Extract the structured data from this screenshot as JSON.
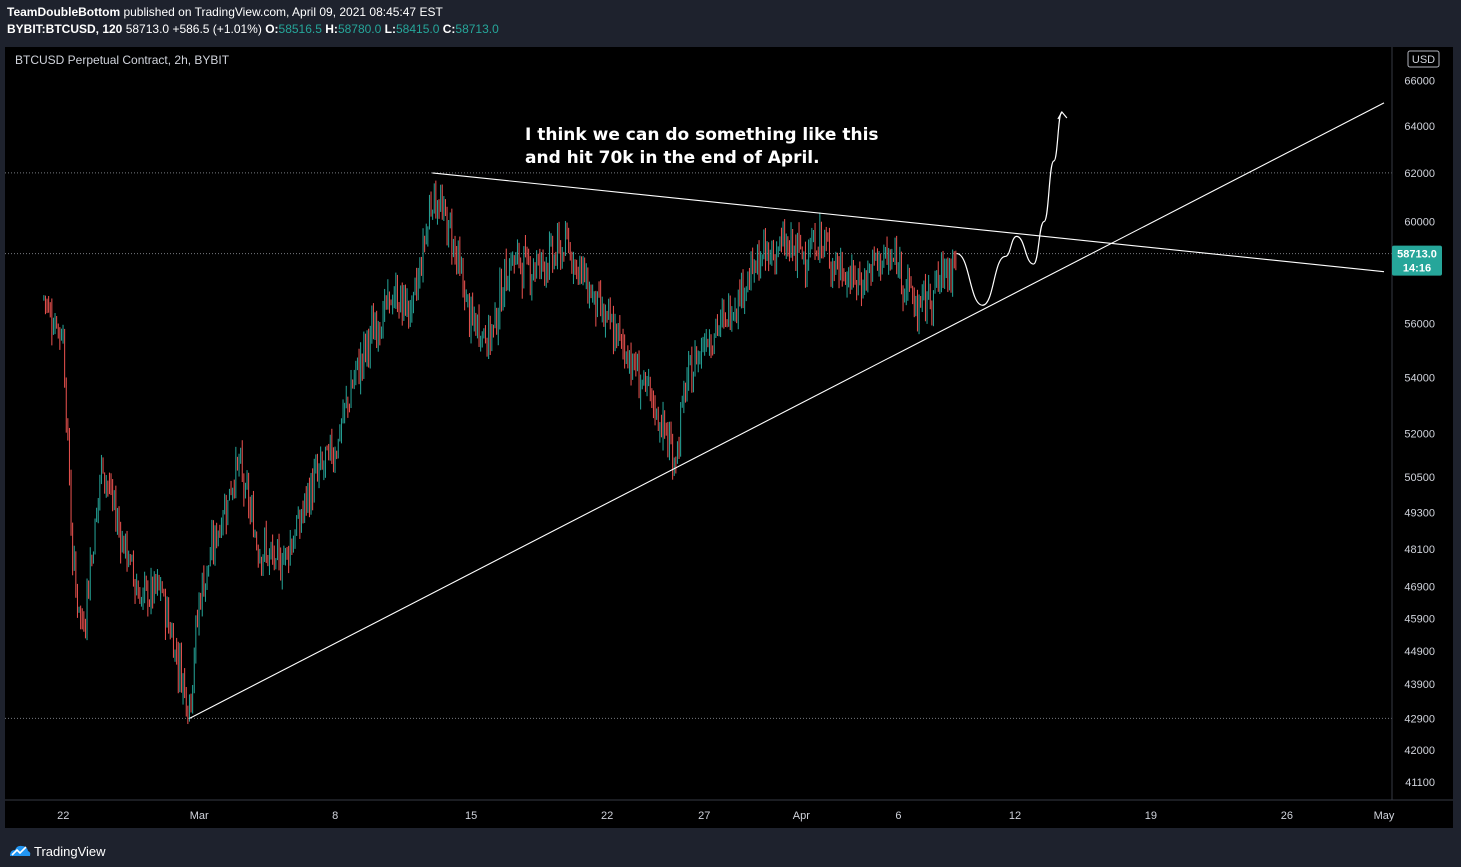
{
  "header": {
    "author": "TeamDoubleBottom",
    "published_text": "published on TradingView.com, April 09, 2021 08:45:47 EST",
    "symbol": "BYBIT:BTCUSD, 120",
    "last_price": "58713.0",
    "change": "+586.5 (+1.01%)",
    "open_key": "O:",
    "open_val": "58516.5",
    "high_key": "H:",
    "high_val": "58780.0",
    "low_key": "L:",
    "low_val": "58415.0",
    "close_key": "C:",
    "close_val": "58713.0"
  },
  "colors": {
    "up": "#26a69a",
    "down": "#ef5350",
    "background": "#000000",
    "chrome": "#1e222d",
    "drawing": "#ffffff",
    "price_badge": "#26a69a"
  },
  "chart_data": {
    "type": "candlestick",
    "title": "BTCUSD Perpetual Contract, 2h, BYBIT",
    "currency": "USD",
    "y_scale": "log",
    "ylim": [
      40600,
      67500
    ],
    "y_ticks": [
      66000,
      64000,
      62000,
      60000,
      56000,
      54000,
      52000,
      50500,
      49300,
      48100,
      46900,
      45900,
      44900,
      43900,
      42900,
      42000,
      41100
    ],
    "x_tick_labels": [
      {
        "label": "22",
        "date": "2021-02-22"
      },
      {
        "label": "Mar",
        "date": "2021-03-01"
      },
      {
        "label": "8",
        "date": "2021-03-08"
      },
      {
        "label": "15",
        "date": "2021-03-15"
      },
      {
        "label": "22",
        "date": "2021-03-22"
      },
      {
        "label": "27",
        "date": "2021-03-27"
      },
      {
        "label": "Apr",
        "date": "2021-04-01"
      },
      {
        "label": "6",
        "date": "2021-04-06"
      },
      {
        "label": "12",
        "date": "2021-04-12"
      },
      {
        "label": "19",
        "date": "2021-04-19"
      },
      {
        "label": "26",
        "date": "2021-04-26"
      },
      {
        "label": "May",
        "date": "2021-05-01"
      }
    ],
    "current_price_label": "58713.0",
    "countdown_label": "14:16",
    "current_price": 58713,
    "horizontal_levels": [
      62000,
      58713,
      42900
    ],
    "annotation": [
      "I think we can do something like this",
      "and hit 70k in the end of April."
    ],
    "price_path": [
      {
        "date": "2021-02-21",
        "price": 57000
      },
      {
        "date": "2021-02-22",
        "price": 55500
      },
      {
        "date": "2021-02-22T12:00",
        "price": 47500
      },
      {
        "date": "2021-02-23",
        "price": 45500
      },
      {
        "date": "2021-02-24",
        "price": 51000
      },
      {
        "date": "2021-02-25",
        "price": 48500
      },
      {
        "date": "2021-02-26",
        "price": 46500
      },
      {
        "date": "2021-02-27",
        "price": 46800
      },
      {
        "date": "2021-02-28T12:00",
        "price": 43300
      },
      {
        "date": "2021-03-01",
        "price": 46500
      },
      {
        "date": "2021-03-02",
        "price": 48800
      },
      {
        "date": "2021-03-03",
        "price": 51000
      },
      {
        "date": "2021-03-04",
        "price": 48300
      },
      {
        "date": "2021-03-05",
        "price": 47500
      },
      {
        "date": "2021-03-06",
        "price": 48700
      },
      {
        "date": "2021-03-07",
        "price": 50500
      },
      {
        "date": "2021-03-08",
        "price": 51500
      },
      {
        "date": "2021-03-09",
        "price": 54000
      },
      {
        "date": "2021-03-10",
        "price": 55800
      },
      {
        "date": "2021-03-11",
        "price": 57000
      },
      {
        "date": "2021-03-12",
        "price": 56500
      },
      {
        "date": "2021-03-13",
        "price": 61200
      },
      {
        "date": "2021-03-14",
        "price": 59500
      },
      {
        "date": "2021-03-15",
        "price": 56000
      },
      {
        "date": "2021-03-16",
        "price": 55500
      },
      {
        "date": "2021-03-17",
        "price": 58500
      },
      {
        "date": "2021-03-18",
        "price": 58200
      },
      {
        "date": "2021-03-19",
        "price": 58500
      },
      {
        "date": "2021-03-20",
        "price": 59000
      },
      {
        "date": "2021-03-21",
        "price": 57500
      },
      {
        "date": "2021-03-22",
        "price": 56000
      },
      {
        "date": "2021-03-23",
        "price": 55000
      },
      {
        "date": "2021-03-24",
        "price": 53500
      },
      {
        "date": "2021-03-25",
        "price": 52000
      },
      {
        "date": "2021-03-25T12:00",
        "price": 51000
      },
      {
        "date": "2021-03-26",
        "price": 53500
      },
      {
        "date": "2021-03-27",
        "price": 55500
      },
      {
        "date": "2021-03-28",
        "price": 56000
      },
      {
        "date": "2021-03-29",
        "price": 57500
      },
      {
        "date": "2021-03-30",
        "price": 58500
      },
      {
        "date": "2021-03-31",
        "price": 59000
      },
      {
        "date": "2021-04-01",
        "price": 58700
      },
      {
        "date": "2021-04-02",
        "price": 59200
      },
      {
        "date": "2021-04-03",
        "price": 58000
      },
      {
        "date": "2021-04-04",
        "price": 57500
      },
      {
        "date": "2021-04-05",
        "price": 58500
      },
      {
        "date": "2021-04-06",
        "price": 58300
      },
      {
        "date": "2021-04-07",
        "price": 56500
      },
      {
        "date": "2021-04-08",
        "price": 57500
      },
      {
        "date": "2021-04-09",
        "price": 58713
      }
    ],
    "trendlines": [
      {
        "name": "resistance",
        "from": {
          "date": "2021-03-13",
          "price": 62000
        },
        "to": {
          "date": "2021-05-01",
          "price": 58000
        }
      },
      {
        "name": "support",
        "from": {
          "date": "2021-02-28T12:00",
          "price": 42900
        },
        "to": {
          "date": "2021-05-01",
          "price": 65000
        }
      }
    ],
    "projection_path": [
      {
        "date": "2021-04-09",
        "price": 58713
      },
      {
        "date": "2021-04-10T08:00",
        "price": 56700
      },
      {
        "date": "2021-04-11T12:00",
        "price": 58600
      },
      {
        "date": "2021-04-12T02:00",
        "price": 59400
      },
      {
        "date": "2021-04-12T23:00",
        "price": 58300
      },
      {
        "date": "2021-04-13T12:00",
        "price": 60000
      },
      {
        "date": "2021-04-14",
        "price": 62500
      },
      {
        "date": "2021-04-14T10:00",
        "price": 64600
      }
    ]
  }
}
